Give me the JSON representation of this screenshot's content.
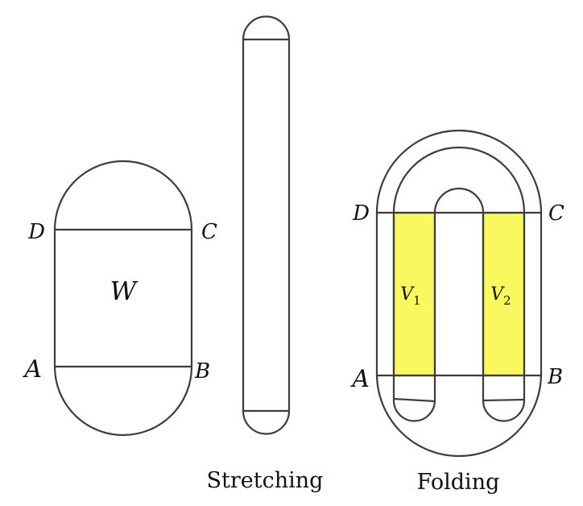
{
  "colors": {
    "stroke": "#3d3d3d",
    "highlight": "#f9f95f",
    "background": "#ffffff"
  },
  "left_shape": {
    "region_label": "W",
    "corners": {
      "top_left": "D",
      "top_right": "C",
      "bottom_left": "A",
      "bottom_right": "B"
    }
  },
  "middle_shape": {
    "caption": "Stretching"
  },
  "right_shape": {
    "caption": "Folding",
    "corners": {
      "top_left": "D",
      "top_right": "C",
      "bottom_left": "A",
      "bottom_right": "B"
    },
    "strips": [
      {
        "base": "V",
        "sub": "1"
      },
      {
        "base": "V",
        "sub": "2"
      }
    ]
  }
}
